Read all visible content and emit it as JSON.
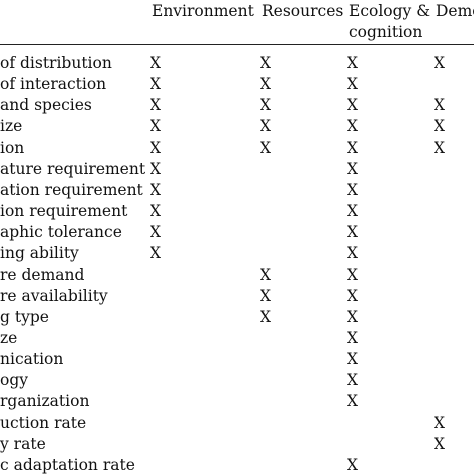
{
  "headers": {
    "environment": "Environment",
    "resources": "Resources",
    "ecology_line1": "Ecology &",
    "ecology_line2": "cognition",
    "demography": "Demo"
  },
  "rows": [
    {
      "label": "of distribution",
      "env": "X",
      "res": "X",
      "eco": "X",
      "dem": "X"
    },
    {
      "label": "of interaction",
      "env": "X",
      "res": "X",
      "eco": "X",
      "dem": ""
    },
    {
      "label": "and species",
      "env": "X",
      "res": "X",
      "eco": "X",
      "dem": "X"
    },
    {
      "label": "ize",
      "env": "X",
      "res": "X",
      "eco": "X",
      "dem": "X"
    },
    {
      "label": "ion",
      "env": "X",
      "res": "X",
      "eco": "X",
      "dem": "X"
    },
    {
      "label": "ature requirement",
      "env": "X",
      "res": "",
      "eco": "X",
      "dem": ""
    },
    {
      "label": "ation requirement",
      "env": "X",
      "res": "",
      "eco": "X",
      "dem": ""
    },
    {
      "label": "ion requirement",
      "env": "X",
      "res": "",
      "eco": "X",
      "dem": ""
    },
    {
      "label": "aphic tolerance",
      "env": "X",
      "res": "",
      "eco": "X",
      "dem": ""
    },
    {
      "label": "ing ability",
      "env": "X",
      "res": "",
      "eco": "X",
      "dem": ""
    },
    {
      "label": "re demand",
      "env": "",
      "res": "X",
      "eco": "X",
      "dem": ""
    },
    {
      "label": "re availability",
      "env": "",
      "res": "X",
      "eco": "X",
      "dem": ""
    },
    {
      "label": "g type",
      "env": "",
      "res": "X",
      "eco": "X",
      "dem": ""
    },
    {
      "label": "ze",
      "env": "",
      "res": "",
      "eco": "X",
      "dem": ""
    },
    {
      "label": "nication",
      "env": "",
      "res": "",
      "eco": "X",
      "dem": ""
    },
    {
      "label": "ogy",
      "env": "",
      "res": "",
      "eco": "X",
      "dem": ""
    },
    {
      "label": "rganization",
      "env": "",
      "res": "",
      "eco": "X",
      "dem": ""
    },
    {
      "label": "uction rate",
      "env": "",
      "res": "",
      "eco": "",
      "dem": "X"
    },
    {
      "label": "y rate",
      "env": "",
      "res": "",
      "eco": "",
      "dem": "X"
    },
    {
      "label": "c adaptation rate",
      "env": "",
      "res": "",
      "eco": "X",
      "dem": ""
    }
  ]
}
